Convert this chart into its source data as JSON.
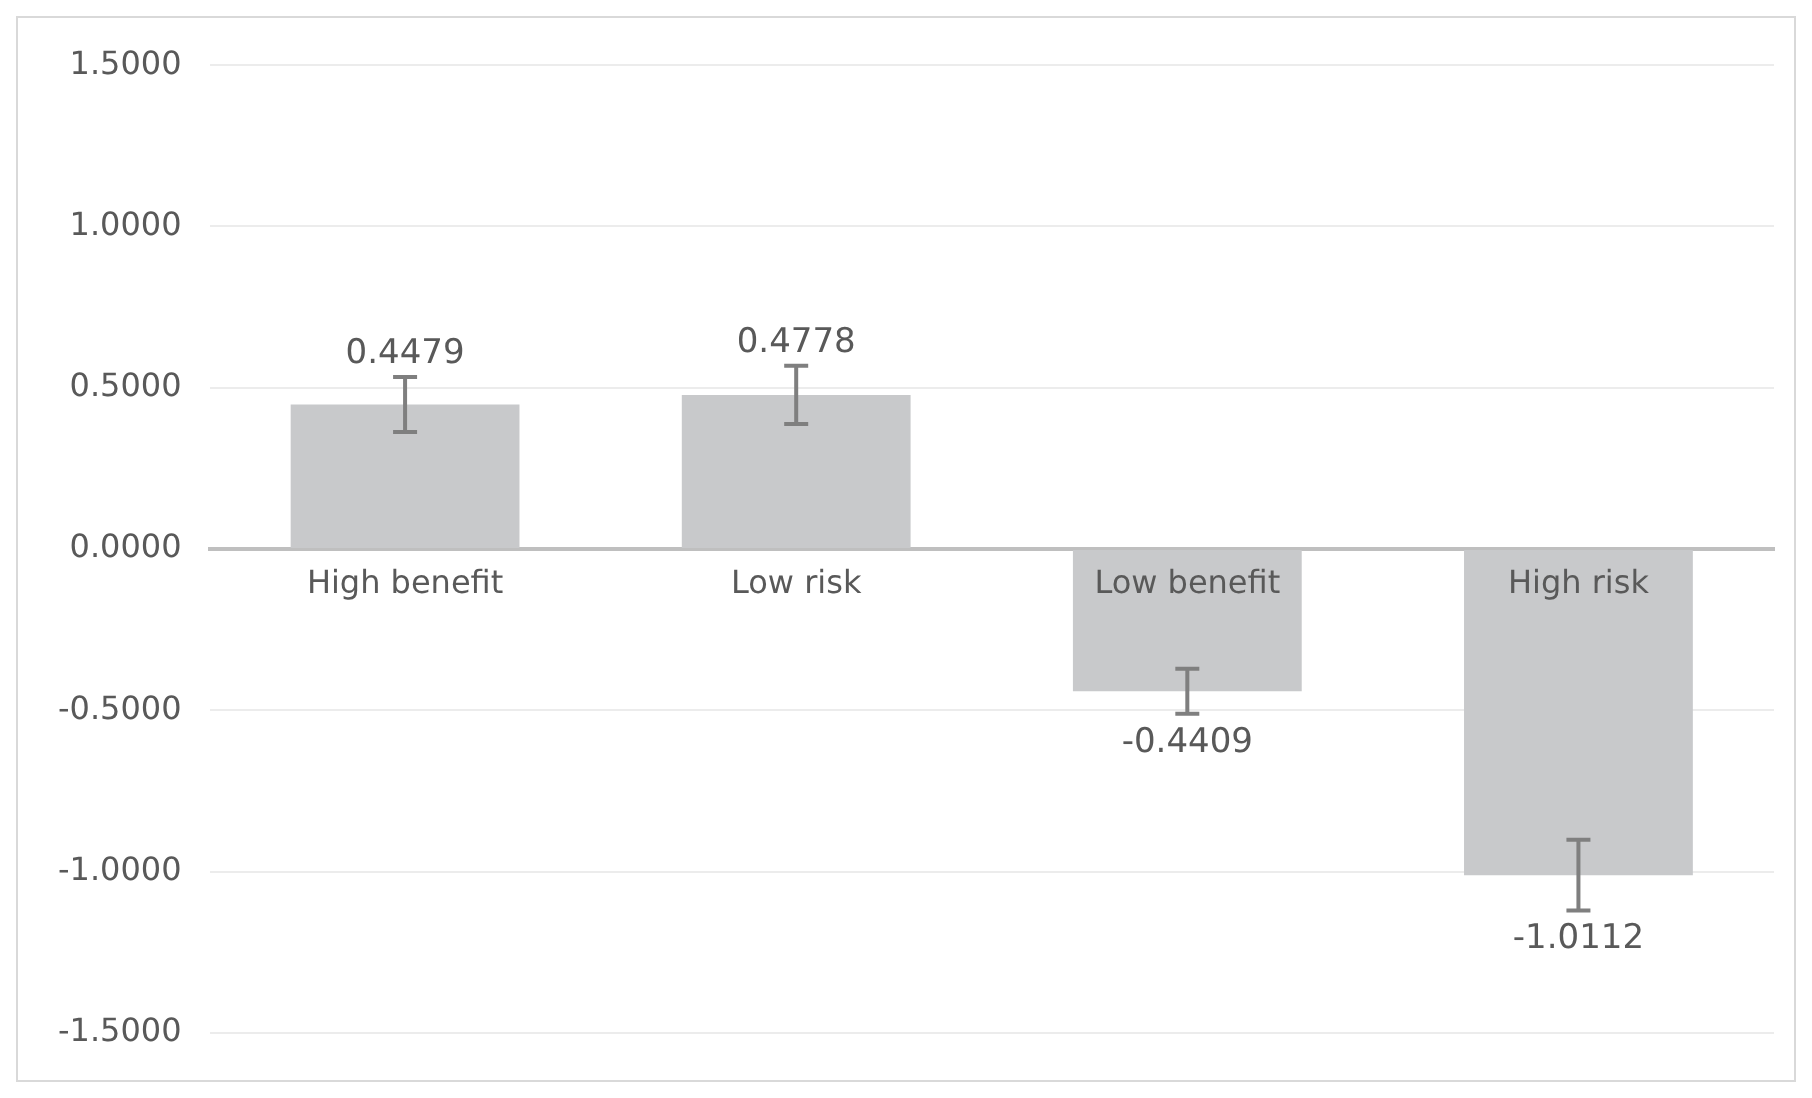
{
  "chart_data": {
    "type": "bar",
    "categories": [
      "High benefit",
      "Low risk",
      "Low benefit",
      "High risk"
    ],
    "values": [
      0.4479,
      0.4778,
      -0.4409,
      -1.0112
    ],
    "errors": [
      0.085,
      0.09,
      0.07,
      0.11
    ],
    "color": "#c8c9cb",
    "data_labels": true,
    "ylim": [
      -1.5,
      1.5
    ],
    "yticks": [
      {
        "value": -1.5,
        "label": "-1.5000"
      },
      {
        "value": -1,
        "label": "-1.0000"
      },
      {
        "value": -0.5,
        "label": "-0.5000"
      },
      {
        "value": 0,
        "label": "0.0000"
      },
      {
        "value": 0.5,
        "label": "0.5000"
      },
      {
        "value": 1,
        "label": "1.0000"
      },
      {
        "value": 1.5,
        "label": "1.5000"
      }
    ],
    "grid": "y",
    "legend": false
  }
}
